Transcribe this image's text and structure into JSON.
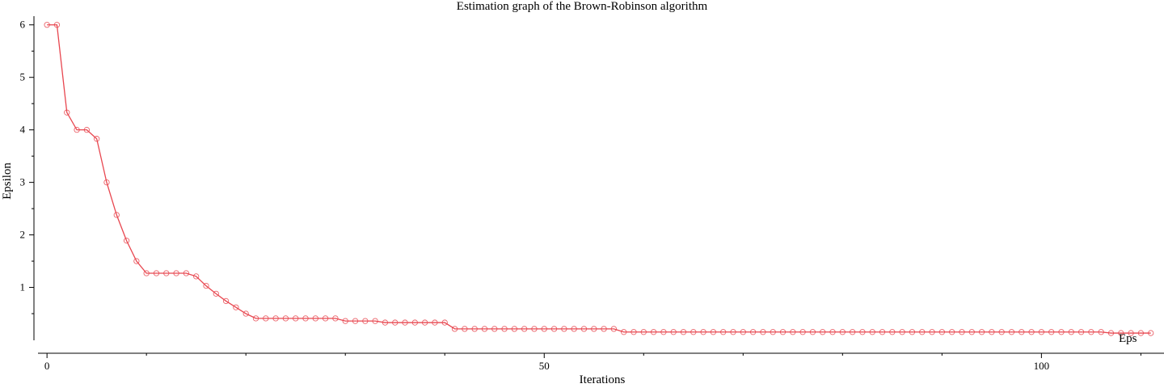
{
  "chart_data": {
    "type": "line",
    "title": "Estimation graph of the Brown-Robinson algorithm",
    "xlabel": "Iterations",
    "ylabel": "Epsilon",
    "xlim": [
      -0.5,
      112
    ],
    "ylim": [
      -0.1,
      6.15
    ],
    "x_ticks": [
      0,
      50,
      100
    ],
    "x_tick_labels": [
      "0",
      "50",
      "100"
    ],
    "x_minor_ticks": [
      10,
      20,
      30,
      40,
      60,
      70,
      80,
      90,
      110
    ],
    "y_ticks": [
      1,
      2,
      3,
      4,
      5,
      6
    ],
    "y_tick_labels": [
      "1",
      "2",
      "3",
      "4",
      "5",
      "6"
    ],
    "y_minor_ticks": [
      0.5,
      1.5,
      2.5,
      3.5,
      4.5,
      5.5
    ],
    "legend": {
      "position": "right",
      "entries": [
        "Eps"
      ]
    },
    "series": [
      {
        "name": "Eps",
        "color": "#e8464f",
        "marker": "circle",
        "x": [
          0,
          1,
          2,
          3,
          4,
          5,
          6,
          7,
          8,
          9,
          10,
          11,
          12,
          13,
          14,
          15,
          16,
          17,
          18,
          19,
          20,
          21,
          22,
          23,
          24,
          25,
          26,
          27,
          28,
          29,
          30,
          31,
          32,
          33,
          34,
          35,
          36,
          37,
          38,
          39,
          40,
          41,
          42,
          43,
          44,
          45,
          46,
          47,
          48,
          49,
          50,
          51,
          52,
          53,
          54,
          55,
          56,
          57,
          58,
          59,
          60,
          61,
          62,
          63,
          64,
          65,
          66,
          67,
          68,
          69,
          70,
          71,
          72,
          73,
          74,
          75,
          76,
          77,
          78,
          79,
          80,
          81,
          82,
          83,
          84,
          85,
          86,
          87,
          88,
          89,
          90,
          91,
          92,
          93,
          94,
          95,
          96,
          97,
          98,
          99,
          100,
          101,
          102,
          103,
          104,
          105,
          106,
          107,
          108,
          109,
          110,
          111
        ],
        "values": [
          6.0,
          6.0,
          4.33,
          4.0,
          4.0,
          3.83,
          3.0,
          2.38,
          1.89,
          1.5,
          1.27,
          1.27,
          1.27,
          1.27,
          1.27,
          1.21,
          1.03,
          0.88,
          0.74,
          0.62,
          0.5,
          0.41,
          0.41,
          0.41,
          0.41,
          0.41,
          0.41,
          0.41,
          0.41,
          0.41,
          0.36,
          0.36,
          0.36,
          0.36,
          0.33,
          0.33,
          0.33,
          0.33,
          0.33,
          0.33,
          0.33,
          0.21,
          0.21,
          0.21,
          0.21,
          0.21,
          0.21,
          0.21,
          0.21,
          0.21,
          0.21,
          0.21,
          0.21,
          0.21,
          0.21,
          0.21,
          0.21,
          0.21,
          0.15,
          0.15,
          0.15,
          0.15,
          0.15,
          0.15,
          0.15,
          0.15,
          0.15,
          0.15,
          0.15,
          0.15,
          0.15,
          0.15,
          0.15,
          0.15,
          0.15,
          0.15,
          0.15,
          0.15,
          0.15,
          0.15,
          0.15,
          0.15,
          0.15,
          0.15,
          0.15,
          0.15,
          0.15,
          0.15,
          0.15,
          0.15,
          0.15,
          0.15,
          0.15,
          0.15,
          0.15,
          0.15,
          0.15,
          0.15,
          0.15,
          0.15,
          0.15,
          0.15,
          0.15,
          0.15,
          0.15,
          0.15,
          0.15,
          0.13,
          0.13,
          0.13,
          0.13,
          0.13
        ]
      }
    ]
  }
}
